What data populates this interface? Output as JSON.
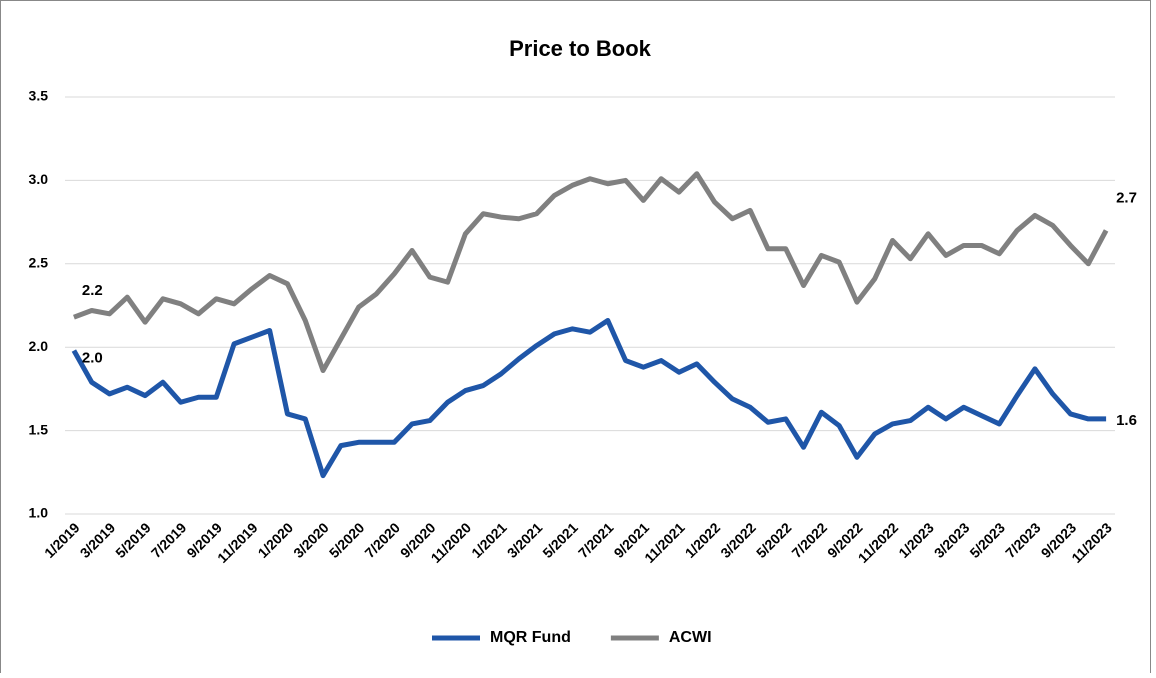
{
  "chart_data": {
    "type": "line",
    "title": "Price to Book",
    "categories": [
      "1/2019",
      null,
      "3/2019",
      null,
      "5/2019",
      null,
      "7/2019",
      null,
      "9/2019",
      null,
      "11/2019",
      null,
      "1/2020",
      null,
      "3/2020",
      null,
      "5/2020",
      null,
      "7/2020",
      null,
      "9/2020",
      null,
      "11/2020",
      null,
      "1/2021",
      null,
      "3/2021",
      null,
      "5/2021",
      null,
      "7/2021",
      null,
      "9/2021",
      null,
      "11/2021",
      null,
      "1/2022",
      null,
      "3/2022",
      null,
      "5/2022",
      null,
      "7/2022",
      null,
      "9/2022",
      null,
      "11/2022",
      null,
      "1/2023",
      null,
      "3/2023",
      null,
      "5/2023",
      null,
      "7/2023",
      null,
      "9/2023",
      null,
      "11/2023"
    ],
    "series": [
      {
        "name": "MQR Fund",
        "color": "#1f56a8",
        "values": [
          1.98,
          1.79,
          1.72,
          1.76,
          1.71,
          1.79,
          1.67,
          1.7,
          1.7,
          2.02,
          2.06,
          2.1,
          1.6,
          1.57,
          1.23,
          1.41,
          1.43,
          1.43,
          1.43,
          1.54,
          1.56,
          1.67,
          1.74,
          1.77,
          1.84,
          1.93,
          2.01,
          2.08,
          2.11,
          2.09,
          2.16,
          1.92,
          1.88,
          1.92,
          1.85,
          1.9,
          1.79,
          1.69,
          1.64,
          1.55,
          1.57,
          1.4,
          1.61,
          1.53,
          1.34,
          1.48,
          1.54,
          1.56,
          1.64,
          1.57,
          1.64,
          1.59,
          1.54,
          1.71,
          1.87,
          1.72,
          1.6,
          1.57,
          1.57
        ],
        "value_labels": [
          "2.0",
          null,
          null,
          null,
          null,
          null,
          null,
          null,
          null,
          null,
          null,
          null,
          null,
          null,
          null,
          null,
          null,
          null,
          null,
          null,
          null,
          null,
          null,
          null,
          null,
          null,
          null,
          null,
          null,
          null,
          null,
          null,
          null,
          null,
          null,
          null,
          null,
          null,
          null,
          null,
          null,
          null,
          null,
          null,
          null,
          null,
          null,
          null,
          null,
          null,
          null,
          null,
          null,
          null,
          null,
          null,
          null,
          null,
          "1.6"
        ]
      },
      {
        "name": "ACWI",
        "color": "#808080",
        "values": [
          2.18,
          2.22,
          2.2,
          2.3,
          2.15,
          2.29,
          2.26,
          2.2,
          2.29,
          2.26,
          2.35,
          2.43,
          2.38,
          2.16,
          1.86,
          2.05,
          2.24,
          2.32,
          2.44,
          2.58,
          2.42,
          2.39,
          2.68,
          2.8,
          2.78,
          2.77,
          2.8,
          2.91,
          2.97,
          3.01,
          2.98,
          3.0,
          2.88,
          3.01,
          2.93,
          3.04,
          2.87,
          2.77,
          2.82,
          2.59,
          2.59,
          2.37,
          2.55,
          2.51,
          2.27,
          2.41,
          2.64,
          2.53,
          2.68,
          2.55,
          2.61,
          2.61,
          2.56,
          2.7,
          2.79,
          2.73,
          2.61,
          2.5,
          2.7
        ],
        "value_labels": [
          "2.2",
          null,
          null,
          null,
          null,
          null,
          null,
          null,
          null,
          null,
          null,
          null,
          null,
          null,
          null,
          null,
          null,
          null,
          null,
          null,
          null,
          null,
          null,
          null,
          null,
          null,
          null,
          null,
          null,
          null,
          null,
          null,
          null,
          null,
          null,
          null,
          null,
          null,
          null,
          null,
          null,
          null,
          null,
          null,
          null,
          null,
          null,
          null,
          null,
          null,
          null,
          null,
          null,
          null,
          null,
          null,
          null,
          null,
          "2.7"
        ]
      }
    ],
    "ylim": [
      1.0,
      3.5
    ],
    "yticks": [
      {
        "value": 1.0,
        "label": "1.0"
      },
      1.5,
      {
        "value": 2.0,
        "label": "2.0"
      },
      2.5,
      {
        "value": 3.0,
        "label": "3.0"
      },
      3.5
    ],
    "grid": true,
    "legend": "bottom"
  }
}
